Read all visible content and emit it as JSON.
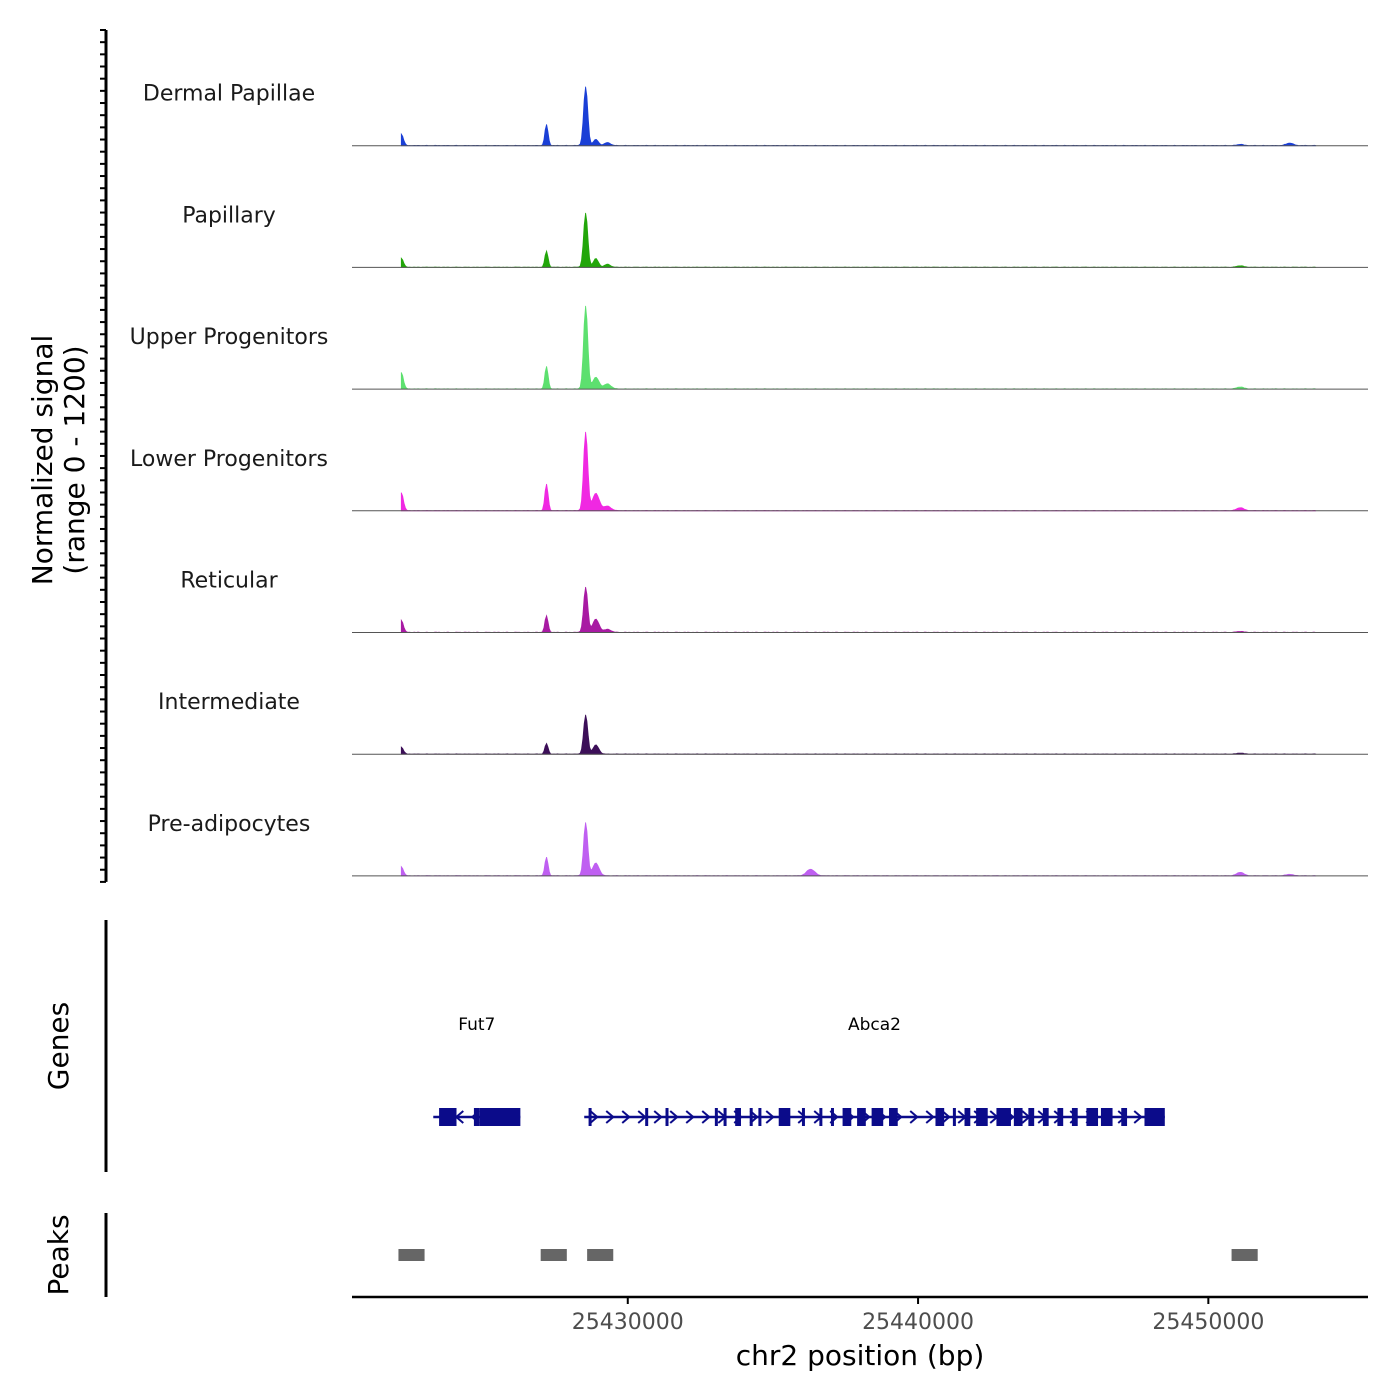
{
  "chart_data": {
    "type": "area",
    "title": "",
    "xlabel": "chr2 position (bp)",
    "ylabel_line1": "Normalized signal",
    "ylabel_line2": "(range 0 - 1200)",
    "ylim": [
      0,
      1200
    ],
    "xlim": [
      25420500,
      25455500
    ],
    "x_ticks": [
      25430000,
      25440000,
      25450000
    ],
    "x_tick_labels": [
      "25430000",
      "25440000",
      "25450000"
    ],
    "series": [
      {
        "name": "Dermal Papillae",
        "color": "#1a3fd6",
        "peaks": [
          [
            25422200,
            230,
            70
          ],
          [
            25427200,
            420,
            55
          ],
          [
            25428550,
            1170,
            70
          ],
          [
            25428900,
            120,
            90
          ],
          [
            25429300,
            60,
            100
          ],
          [
            25451100,
            25,
            100
          ],
          [
            25452800,
            50,
            120
          ]
        ]
      },
      {
        "name": "Papillary",
        "color": "#22a60a",
        "peaks": [
          [
            25422200,
            180,
            70
          ],
          [
            25427200,
            320,
            55
          ],
          [
            25428550,
            1080,
            70
          ],
          [
            25428900,
            170,
            90
          ],
          [
            25429300,
            60,
            100
          ],
          [
            25451100,
            30,
            120
          ]
        ]
      },
      {
        "name": "Upper Progenitors",
        "color": "#5de06f",
        "peaks": [
          [
            25422200,
            330,
            70
          ],
          [
            25427200,
            450,
            55
          ],
          [
            25428550,
            1650,
            70
          ],
          [
            25428900,
            230,
            110
          ],
          [
            25429300,
            100,
            120
          ],
          [
            25451100,
            40,
            120
          ]
        ]
      },
      {
        "name": "Lower Progenitors",
        "color": "#f028e2",
        "peaks": [
          [
            25422200,
            360,
            70
          ],
          [
            25427200,
            530,
            55
          ],
          [
            25428550,
            1560,
            70
          ],
          [
            25428900,
            340,
            120
          ],
          [
            25429300,
            90,
            120
          ],
          [
            25451100,
            60,
            120
          ]
        ]
      },
      {
        "name": "Reticular",
        "color": "#a81aa3",
        "peaks": [
          [
            25422200,
            240,
            70
          ],
          [
            25427200,
            330,
            55
          ],
          [
            25428550,
            900,
            70
          ],
          [
            25428900,
            260,
            110
          ],
          [
            25429300,
            60,
            120
          ],
          [
            25451100,
            20,
            120
          ]
        ]
      },
      {
        "name": "Intermediate",
        "color": "#3c0f58",
        "peaks": [
          [
            25422200,
            140,
            70
          ],
          [
            25427200,
            210,
            55
          ],
          [
            25428550,
            780,
            70
          ],
          [
            25428900,
            180,
            100
          ],
          [
            25451100,
            20,
            120
          ]
        ]
      },
      {
        "name": "Pre-adipocytes",
        "color": "#bf5ff1",
        "peaks": [
          [
            25422200,
            180,
            70
          ],
          [
            25427200,
            370,
            55
          ],
          [
            25428550,
            1060,
            70
          ],
          [
            25428900,
            250,
            110
          ],
          [
            25436300,
            130,
            140
          ],
          [
            25451100,
            70,
            120
          ],
          [
            25452800,
            30,
            120
          ]
        ]
      }
    ],
    "genes_track_label": "Genes",
    "genes": [
      {
        "name": "Fut7",
        "start": 25423300,
        "end": 25426300,
        "strand": "-",
        "color": "#0b0b8a",
        "exons": [
          [
            25423500,
            25424100
          ],
          [
            25424700,
            25424900
          ],
          [
            25424900,
            25426300
          ]
        ]
      },
      {
        "name": "Abca2",
        "start": 25428500,
        "end": 25448500,
        "strand": "+",
        "color": "#0b0b8a",
        "exons": [
          [
            25428650,
            25428750
          ],
          [
            25430600,
            25430650
          ],
          [
            25431300,
            25431380
          ],
          [
            25433000,
            25433100
          ],
          [
            25433300,
            25433400
          ],
          [
            25433700,
            25433900
          ],
          [
            25434200,
            25434300
          ],
          [
            25434500,
            25434600
          ],
          [
            25435200,
            25435600
          ],
          [
            25436000,
            25436100
          ],
          [
            25436600,
            25436700
          ],
          [
            25437000,
            25437100
          ],
          [
            25437400,
            25437700
          ],
          [
            25437900,
            25438200
          ],
          [
            25438400,
            25438800
          ],
          [
            25439000,
            25439300
          ],
          [
            25440600,
            25440900
          ],
          [
            25441200,
            25441300
          ],
          [
            25441600,
            25441800
          ],
          [
            25442000,
            25442400
          ],
          [
            25442700,
            25443200
          ],
          [
            25443300,
            25443600
          ],
          [
            25443800,
            25444000
          ],
          [
            25444300,
            25444500
          ],
          [
            25444800,
            25445000
          ],
          [
            25445300,
            25445500
          ],
          [
            25445800,
            25446200
          ],
          [
            25446300,
            25446700
          ],
          [
            25447000,
            25447200
          ],
          [
            25447800,
            25448500
          ]
        ]
      }
    ],
    "peaks_track_label": "Peaks",
    "peak_regions": [
      [
        25422100,
        25423000
      ],
      [
        25427000,
        25427900
      ],
      [
        25428600,
        25429500
      ],
      [
        25450800,
        25451700
      ]
    ],
    "peak_region_color": "#666666"
  }
}
